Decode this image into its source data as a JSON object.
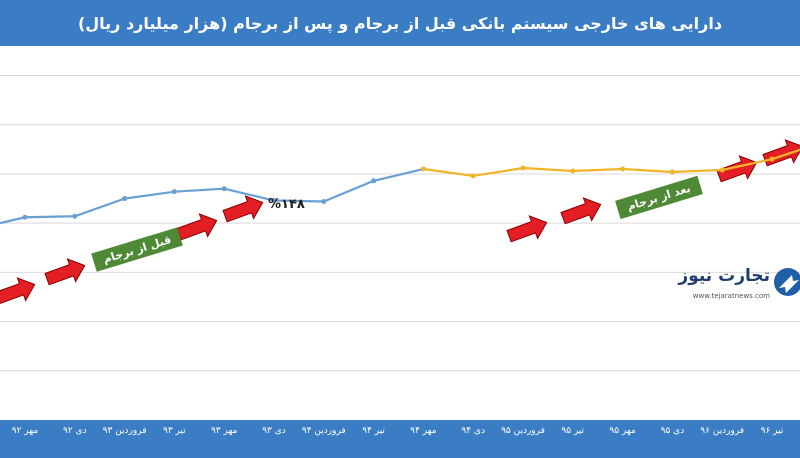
{
  "chart_data": {
    "type": "line",
    "title": "دارایی های خارجی سیستم بانکی قبل از برجام و پس از برجام (هزار میلیارد ریال)",
    "categories": [
      "مهر ۹۲",
      "دی ۹۲",
      "فروردین ۹۳",
      "تیر ۹۳",
      "مهر ۹۳",
      "دی ۹۳",
      "فروردین ۹۴",
      "تیر ۹۴",
      "مهر ۹۴",
      "دی ۹۴",
      "فروردین ۹۵",
      "تیر ۹۵",
      "مهر ۹۵",
      "دی ۹۵",
      "فروردین ۹۶",
      "تیر ۹۶"
    ],
    "series": [
      {
        "name": "before",
        "color": "#6a9fd4",
        "points": [
          [
            -0.5,
            200
          ],
          [
            0,
            206
          ],
          [
            1,
            207
          ],
          [
            2,
            225
          ],
          [
            3,
            232
          ],
          [
            4,
            235
          ],
          [
            5,
            223
          ],
          [
            6,
            222
          ],
          [
            7,
            243
          ],
          [
            8,
            255
          ]
        ]
      },
      {
        "name": "after",
        "color": "#f0b429",
        "points": [
          [
            8,
            255
          ],
          [
            9,
            248
          ],
          [
            10,
            256
          ],
          [
            11,
            253
          ],
          [
            12,
            255
          ],
          [
            13,
            252
          ],
          [
            14,
            254
          ],
          [
            15,
            265
          ],
          [
            15.65,
            276
          ]
        ]
      }
    ],
    "ylim": [
      0,
      380
    ],
    "grid": true,
    "annotations": {
      "before_label": "قبل از برجام",
      "after_label": "بعد از برجام",
      "growth_label": "%۱۴۸"
    }
  },
  "logo": {
    "name": "تجارت نیوز",
    "url": "www.tejaratnews.com"
  },
  "colors": {
    "header": "#3b7dc4",
    "arrow": "#e31e24",
    "callout": "#4e8a35"
  }
}
